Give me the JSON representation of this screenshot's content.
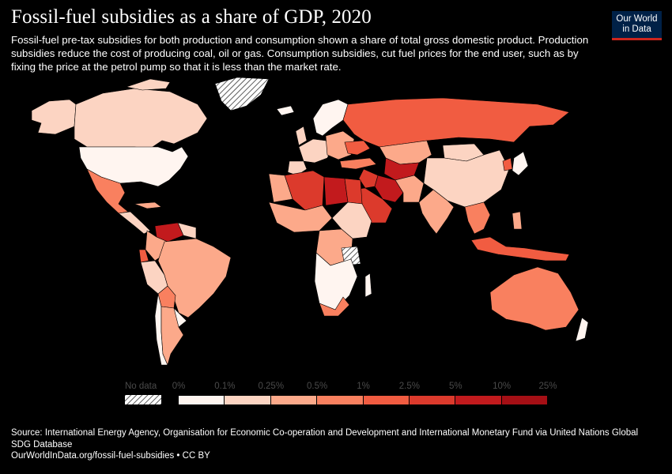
{
  "header": {
    "title": "Fossil-fuel subsidies as a share of GDP, 2020",
    "subtitle": "Fossil-fuel pre-tax subsidies for both production and consumption shown a share of total gross domestic product. Production subsidies reduce the cost of producing coal, oil or gas. Consumption subsidies, cut fuel prices for the end user, such as by fixing the price at the petrol pump so that it is less than the market rate."
  },
  "logo": {
    "line1": "Our World",
    "line2": "in Data"
  },
  "colors": {
    "background": "#000000",
    "no_data": "#ffffff",
    "scale": [
      "#fff5f0",
      "#fcd4c2",
      "#fca98a",
      "#f9805f",
      "#f15c41",
      "#dc3a2c",
      "#c21a1d",
      "#a50f15"
    ],
    "logo_bg": "#002147",
    "logo_accent": "#ce261e"
  },
  "legend": {
    "no_data_label": "No data",
    "ticks": [
      "0%",
      "0.1%",
      "0.25%",
      "0.5%",
      "1%",
      "2.5%",
      "5%",
      "10%",
      "25%"
    ]
  },
  "chart_data": {
    "type": "choropleth",
    "variable": "Fossil-fuel subsidies as a share of GDP",
    "year": 2020,
    "bins": [
      {
        "range": [
          "0%",
          "0.1%"
        ],
        "color": "#fff5f0"
      },
      {
        "range": [
          "0.1%",
          "0.25%"
        ],
        "color": "#fcd4c2"
      },
      {
        "range": [
          "0.25%",
          "0.5%"
        ],
        "color": "#fca98a"
      },
      {
        "range": [
          "0.5%",
          "1%"
        ],
        "color": "#f9805f"
      },
      {
        "range": [
          "1%",
          "2.5%"
        ],
        "color": "#f15c41"
      },
      {
        "range": [
          "2.5%",
          "5%"
        ],
        "color": "#dc3a2c"
      },
      {
        "range": [
          "5%",
          "10%"
        ],
        "color": "#c21a1d"
      },
      {
        "range": [
          "10%",
          "25%"
        ],
        "color": "#a50f15"
      }
    ]
  },
  "source": {
    "text": "Source: International Energy Agency, Organisation for Economic Co-operation and Development and International Monetary Fund via United Nations Global SDG Database",
    "footer": "OurWorldInData.org/fossil-fuel-subsidies • CC BY"
  }
}
